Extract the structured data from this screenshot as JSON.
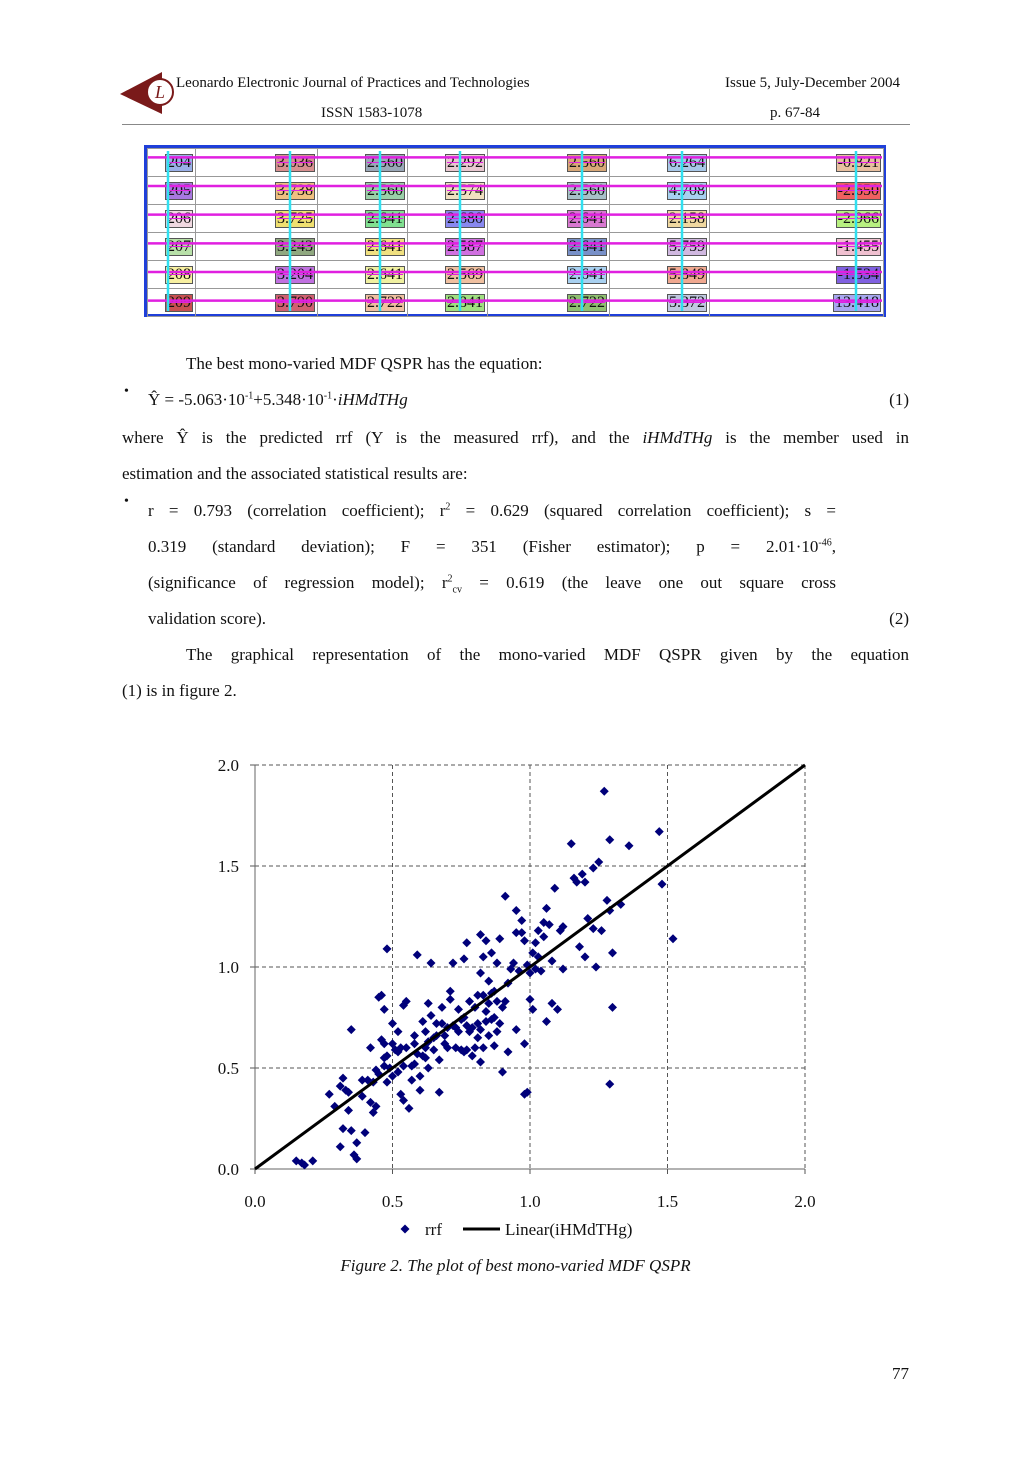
{
  "header": {
    "journal": "Leonardo Electronic Journal of Practices and Technologies",
    "issue": "Issue 5, July-December 2004",
    "issn": "ISSN 1583-1078",
    "pages": "p. 67-84",
    "logo_letter": "L"
  },
  "table": {
    "rows": [
      [
        "204",
        "3.036",
        "2.560",
        "2.292",
        "2.560",
        "6.264",
        "-0.821"
      ],
      [
        "205",
        "3.738",
        "2.560",
        "2.574",
        "2.560",
        "4.708",
        "-2.650"
      ],
      [
        "206",
        "3.725",
        "2.641",
        "2.680",
        "2.641",
        "2.158",
        "-2.966"
      ],
      [
        "207",
        "3.243",
        "2.641",
        "2.587",
        "2.641",
        "5.759",
        "-1.455"
      ],
      [
        "208",
        "3.204",
        "2.641",
        "2.569",
        "2.641",
        "5.849",
        "-1.534"
      ],
      [
        "209",
        "3.790",
        "2.722",
        "2.841",
        "2.722",
        "5.372",
        "13.418"
      ]
    ],
    "cell_colors": [
      [
        "#9ab0e8",
        "#d89090",
        "#9aa8b8",
        "#e8c8d0",
        "#d8a878",
        "#a8c8e8",
        "#e8c0a0"
      ],
      [
        "#a878e0",
        "#f0c080",
        "#9ad0a8",
        "#f0e0c0",
        "#a8c0c8",
        "#a8d0f0",
        "#f06060"
      ],
      [
        "#f0d8e0",
        "#f0e070",
        "#80e090",
        "#8888f0",
        "#d878d0",
        "#f0d8a0",
        "#b8f080"
      ],
      [
        "#b8e0a8",
        "#90a880",
        "#f0e080",
        "#d070e0",
        "#7890c8",
        "#d0b8e0",
        "#f0c0d0"
      ],
      [
        "#f8f0a0",
        "#c070e0",
        "#f0f0a0",
        "#f0c0a0",
        "#a8d0f0",
        "#f0a890",
        "#8060e0"
      ],
      [
        "#c85050",
        "#d06070",
        "#f0c0a0",
        "#a0e080",
        "#90c070",
        "#c0c8e0",
        "#a8a8f0"
      ]
    ]
  },
  "body": {
    "intro": "The best mono-varied MDF QSPR has the equation:",
    "bullet": "•",
    "eq1_parts": {
      "lhs": "Ŷ = -5.063·10",
      "exp1": "-1",
      "mid": "+5.348·10",
      "exp2": "-1",
      "dot": "·",
      "var": "iHMdTHg"
    },
    "eq1_num": "(1)",
    "where_a": "where Ŷ is the predicted rrf (Y is the measured rrf), and the ",
    "where_var": "iHMdTHg",
    "where_b": " is the member used in",
    "where_c": "estimation and the associated statistical results are:",
    "stats_line1_a": "r = 0.793 (correlation coefficient); r",
    "stats_line1_sup": "2",
    "stats_line1_b": " = 0.629 (squared correlation coefficient); s =",
    "stats_line2_a": "0.319 (standard deviation); F = 351 (Fisher estimator); p = 2.01·10",
    "stats_line2_sup": "-46",
    "stats_line2_b": ",",
    "stats_line3_a": "(significance of regression model); r",
    "stats_line3_sup": "2",
    "stats_line3_sub": "cv",
    "stats_line3_b": " = 0.619 (the leave one out square cross",
    "stats_line4": "validation score).",
    "eq2_num": "(2)",
    "graph_a": "The graphical representation of the mono-varied MDF QSPR given by the equation",
    "graph_b": "(1) is in figure 2."
  },
  "chart_data": {
    "type": "scatter",
    "title": "",
    "xlabel": "",
    "ylabel": "",
    "xlim": [
      0.0,
      2.0
    ],
    "ylim": [
      0.0,
      2.0
    ],
    "xticks": [
      "0.0",
      "0.5",
      "1.0",
      "1.5",
      "2.0"
    ],
    "yticks": [
      "0.0",
      "0.5",
      "1.0",
      "1.5",
      "2.0"
    ],
    "grid": true,
    "legend_position": "bottom",
    "series": [
      {
        "name": "rrf",
        "type": "scatter",
        "color": "#00007a",
        "marker": "diamond",
        "points": [
          [
            0.15,
            0.04
          ],
          [
            0.17,
            0.03
          ],
          [
            0.18,
            0.02
          ],
          [
            0.21,
            0.04
          ],
          [
            0.27,
            0.37
          ],
          [
            0.29,
            0.31
          ],
          [
            0.31,
            0.41
          ],
          [
            0.31,
            0.11
          ],
          [
            0.32,
            0.45
          ],
          [
            0.32,
            0.2
          ],
          [
            0.33,
            0.39
          ],
          [
            0.34,
            0.38
          ],
          [
            0.34,
            0.29
          ],
          [
            0.35,
            0.69
          ],
          [
            0.35,
            0.19
          ],
          [
            0.36,
            0.07
          ],
          [
            0.37,
            0.13
          ],
          [
            0.37,
            0.05
          ],
          [
            0.39,
            0.36
          ],
          [
            0.4,
            0.18
          ],
          [
            0.41,
            0.44
          ],
          [
            0.42,
            0.6
          ],
          [
            0.42,
            0.33
          ],
          [
            0.43,
            0.28
          ],
          [
            0.44,
            0.49
          ],
          [
            0.44,
            0.31
          ],
          [
            0.45,
            0.47
          ],
          [
            0.45,
            0.85
          ],
          [
            0.46,
            0.86
          ],
          [
            0.46,
            0.64
          ],
          [
            0.47,
            0.79
          ],
          [
            0.47,
            0.55
          ],
          [
            0.47,
            0.51
          ],
          [
            0.48,
            0.56
          ],
          [
            0.48,
            0.43
          ],
          [
            0.48,
            1.09
          ],
          [
            0.49,
            0.5
          ],
          [
            0.5,
            0.72
          ],
          [
            0.5,
            0.62
          ],
          [
            0.5,
            0.46
          ],
          [
            0.51,
            0.59
          ],
          [
            0.52,
            0.58
          ],
          [
            0.52,
            0.68
          ],
          [
            0.53,
            0.6
          ],
          [
            0.53,
            0.37
          ],
          [
            0.54,
            0.51
          ],
          [
            0.54,
            0.34
          ],
          [
            0.54,
            0.81
          ],
          [
            0.55,
            0.6
          ],
          [
            0.55,
            0.83
          ],
          [
            0.56,
            0.3
          ],
          [
            0.57,
            0.44
          ],
          [
            0.57,
            0.51
          ],
          [
            0.58,
            0.62
          ],
          [
            0.58,
            0.66
          ],
          [
            0.59,
            1.06
          ],
          [
            0.59,
            0.57
          ],
          [
            0.6,
            0.46
          ],
          [
            0.6,
            0.39
          ],
          [
            0.61,
            0.56
          ],
          [
            0.61,
            0.73
          ],
          [
            0.62,
            0.55
          ],
          [
            0.62,
            0.6
          ],
          [
            0.63,
            0.5
          ],
          [
            0.63,
            0.63
          ],
          [
            0.64,
            0.76
          ],
          [
            0.64,
            1.02
          ],
          [
            0.65,
            0.65
          ],
          [
            0.65,
            0.59
          ],
          [
            0.66,
            0.72
          ],
          [
            0.66,
            0.66
          ],
          [
            0.67,
            0.54
          ],
          [
            0.67,
            0.38
          ],
          [
            0.68,
            0.72
          ],
          [
            0.68,
            0.8
          ],
          [
            0.69,
            0.66
          ],
          [
            0.7,
            0.7
          ],
          [
            0.7,
            0.6
          ],
          [
            0.71,
            0.84
          ],
          [
            0.71,
            0.88
          ],
          [
            0.72,
            1.02
          ],
          [
            0.72,
            0.71
          ],
          [
            0.73,
            0.7
          ],
          [
            0.73,
            0.6
          ],
          [
            0.74,
            0.68
          ],
          [
            0.75,
            0.74
          ],
          [
            0.75,
            0.59
          ],
          [
            0.76,
            1.04
          ],
          [
            0.76,
            0.75
          ],
          [
            0.77,
            1.12
          ],
          [
            0.77,
            0.71
          ],
          [
            0.77,
            0.59
          ],
          [
            0.78,
            0.83
          ],
          [
            0.78,
            0.68
          ],
          [
            0.79,
            0.7
          ],
          [
            0.79,
            0.56
          ],
          [
            0.8,
            0.8
          ],
          [
            0.8,
            0.6
          ],
          [
            0.81,
            0.72
          ],
          [
            0.81,
            0.65
          ],
          [
            0.82,
            1.16
          ],
          [
            0.82,
            0.97
          ],
          [
            0.82,
            0.69
          ],
          [
            0.82,
            0.53
          ],
          [
            0.83,
            1.05
          ],
          [
            0.83,
            0.86
          ],
          [
            0.83,
            0.6
          ],
          [
            0.84,
            1.13
          ],
          [
            0.84,
            0.78
          ],
          [
            0.84,
            0.73
          ],
          [
            0.85,
            0.93
          ],
          [
            0.85,
            0.82
          ],
          [
            0.85,
            0.66
          ],
          [
            0.86,
            1.07
          ],
          [
            0.86,
            0.87
          ],
          [
            0.86,
            0.74
          ],
          [
            0.87,
            0.88
          ],
          [
            0.87,
            0.75
          ],
          [
            0.87,
            0.61
          ],
          [
            0.88,
            1.02
          ],
          [
            0.88,
            0.83
          ],
          [
            0.88,
            0.68
          ],
          [
            0.89,
            1.14
          ],
          [
            0.89,
            0.72
          ],
          [
            0.9,
            0.8
          ],
          [
            0.9,
            0.48
          ],
          [
            0.91,
            1.35
          ],
          [
            0.91,
            0.83
          ],
          [
            0.92,
            0.58
          ],
          [
            0.93,
            0.99
          ],
          [
            0.94,
            1.02
          ],
          [
            0.95,
            1.17
          ],
          [
            0.95,
            0.69
          ],
          [
            0.96,
            0.98
          ],
          [
            0.97,
            1.23
          ],
          [
            0.97,
            1.17
          ],
          [
            0.98,
            1.13
          ],
          [
            0.98,
            0.37
          ],
          [
            0.98,
            0.62
          ],
          [
            0.99,
            1.01
          ],
          [
            0.99,
            0.38
          ],
          [
            1.0,
            0.97
          ],
          [
            1.0,
            0.84
          ],
          [
            1.01,
            1.07
          ],
          [
            1.01,
            0.79
          ],
          [
            1.02,
            1.12
          ],
          [
            1.02,
            0.99
          ],
          [
            1.03,
            1.18
          ],
          [
            1.03,
            1.05
          ],
          [
            1.04,
            0.98
          ],
          [
            1.05,
            1.22
          ],
          [
            1.05,
            1.15
          ],
          [
            1.06,
            1.29
          ],
          [
            1.06,
            0.73
          ],
          [
            1.07,
            1.21
          ],
          [
            1.08,
            1.03
          ],
          [
            1.08,
            0.82
          ],
          [
            1.09,
            1.39
          ],
          [
            1.1,
            0.79
          ],
          [
            1.11,
            1.18
          ],
          [
            1.12,
            0.99
          ],
          [
            1.15,
            1.61
          ],
          [
            1.16,
            1.44
          ],
          [
            1.17,
            1.42
          ],
          [
            1.18,
            1.1
          ],
          [
            1.19,
            1.46
          ],
          [
            1.2,
            1.05
          ],
          [
            1.2,
            1.42
          ],
          [
            1.21,
            1.24
          ],
          [
            1.23,
            1.49
          ],
          [
            1.23,
            1.19
          ],
          [
            1.25,
            1.52
          ],
          [
            1.26,
            1.18
          ],
          [
            1.27,
            1.87
          ],
          [
            1.28,
            1.33
          ],
          [
            1.29,
            1.63
          ],
          [
            1.29,
            0.42
          ],
          [
            1.3,
            1.07
          ],
          [
            1.3,
            0.8
          ],
          [
            1.33,
            1.31
          ],
          [
            1.36,
            1.6
          ],
          [
            1.47,
            1.67
          ],
          [
            1.48,
            1.41
          ],
          [
            1.52,
            1.14
          ],
          [
            1.29,
            1.28
          ],
          [
            1.24,
            1.0
          ],
          [
            1.12,
            1.2
          ],
          [
            0.95,
            1.28
          ],
          [
            0.76,
            0.58
          ],
          [
            0.69,
            0.62
          ],
          [
            0.63,
            0.82
          ],
          [
            0.58,
            0.52
          ],
          [
            0.52,
            0.48
          ],
          [
            0.47,
            0.62
          ],
          [
            0.43,
            0.43
          ],
          [
            0.39,
            0.44
          ],
          [
            0.62,
            0.68
          ],
          [
            0.74,
            0.79
          ],
          [
            0.81,
            0.86
          ],
          [
            0.92,
            0.92
          ]
        ]
      },
      {
        "name": "Linear(iHMdTHg)",
        "type": "line",
        "color": "#000000",
        "points": [
          [
            0.0,
            0.0
          ],
          [
            2.0,
            2.0
          ]
        ]
      }
    ]
  },
  "caption": "Figure 2. The plot of best mono-varied MDF QSPR",
  "page_number": "77"
}
